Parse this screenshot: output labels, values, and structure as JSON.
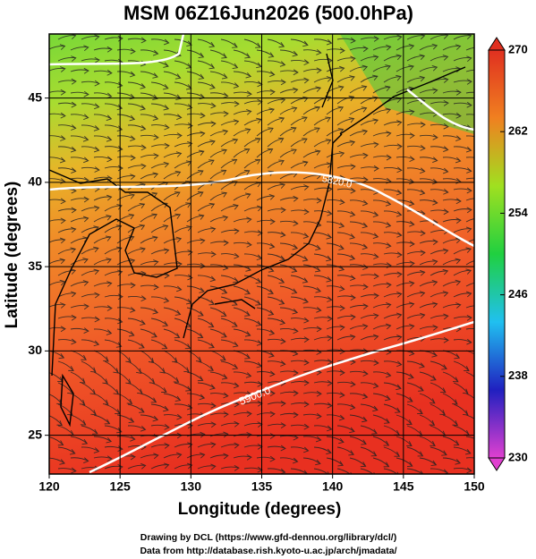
{
  "chart_data": {
    "type": "map",
    "title": "MSM 06Z16Jun2026 (500.0hPa)",
    "x_label": "Longitude (degrees)",
    "y_label": "Latitude  (degrees)",
    "xlim": [
      120,
      150
    ],
    "ylim": [
      22.7,
      48.8
    ],
    "xticks": [
      120,
      125,
      130,
      135,
      140,
      145,
      150
    ],
    "yticks": [
      25,
      30,
      35,
      40,
      45
    ],
    "grid": true,
    "colorbar": {
      "clim": [
        230,
        270
      ],
      "ticks": [
        230,
        238,
        246,
        254,
        262,
        270
      ],
      "colors": [
        "#e040d0",
        "#2020c0",
        "#20c0f0",
        "#20d040",
        "#a0e020",
        "#f08020",
        "#e03020"
      ]
    },
    "contour_labels": [
      "5820.0",
      "5900.0"
    ],
    "credits": [
      "Drawing by DCL (https://www.gfd-dennou.org/library/dcl/)",
      "Data from http://database.rish.kyoto-u.ac.jp/arch/jmadata/"
    ]
  }
}
